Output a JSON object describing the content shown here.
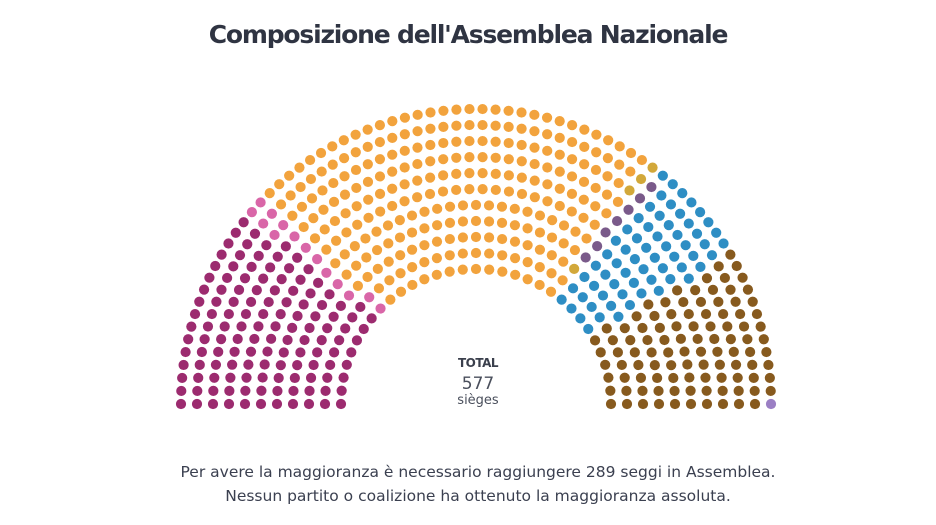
{
  "title": "Composizione dell'Assemblea Nazionale",
  "total": {
    "label": "TOTAL",
    "value": "577",
    "unit": "sièges"
  },
  "caption": {
    "line1": "Per avere la maggioranza è necessario raggiungere 289 seggi in Assemblea.",
    "line2": "Nessun partito o coalizione ha ottenuto la maggioranza assoluta."
  },
  "chart_data": {
    "type": "parliament",
    "total_seats": 577,
    "series": [
      {
        "values": [
          131
        ],
        "color": "#9c2b6f"
      },
      {
        "values": [
          14
        ],
        "color": "#d966a8"
      },
      {
        "values": [
          255
        ],
        "color": "#f2a33d"
      },
      {
        "values": [
          4
        ],
        "color": "#d2a83a"
      },
      {
        "values": [
          7
        ],
        "color": "#7a5a8a"
      },
      {
        "values": [
          64
        ],
        "color": "#2e8ec4"
      },
      {
        "values": [
          101
        ],
        "color": "#875a1e"
      },
      {
        "values": [
          1
        ],
        "color": "#9b7fc4"
      }
    ]
  }
}
